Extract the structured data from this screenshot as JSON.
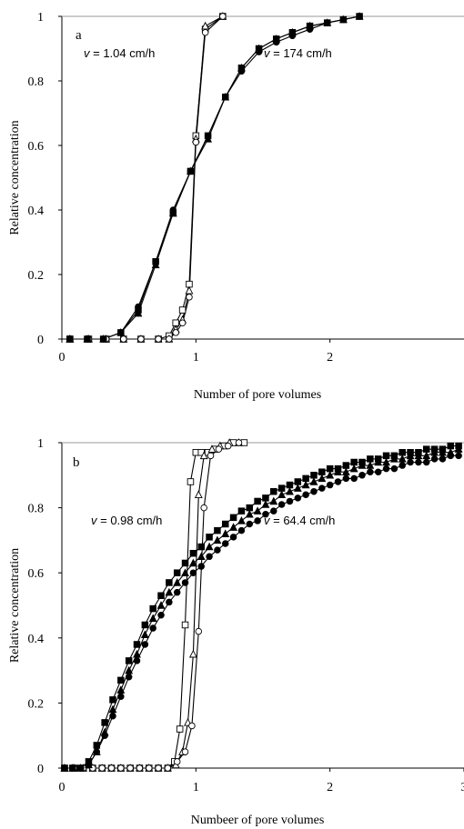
{
  "chart_data": [
    {
      "type": "scatter",
      "panel_label": "a",
      "xlabel": "Number of pore volumes",
      "ylabel": "Relative concentration",
      "xlim": [
        0,
        3
      ],
      "ylim": [
        0,
        1
      ],
      "xticks": [
        "0",
        "1",
        "2"
      ],
      "yticks": [
        "0",
        "0.2",
        "0.4",
        "0.6",
        "0.8",
        "1"
      ],
      "grid": false,
      "annotations": [
        {
          "v_label": "v",
          "rest": " = 1.04 cm/h"
        },
        {
          "v_label": "v",
          "rest": " = 174 cm/h"
        }
      ],
      "series": [
        {
          "group": "v = 1.04 cm/h",
          "marker": "open-square",
          "x": [
            0.06,
            0.2,
            0.33,
            0.46,
            0.59,
            0.72,
            0.8,
            0.85,
            0.9,
            0.95,
            1.0,
            1.07,
            1.2
          ],
          "y": [
            0,
            0,
            0,
            0,
            0,
            0,
            0.01,
            0.05,
            0.09,
            0.17,
            0.63,
            0.96,
            1.0
          ]
        },
        {
          "group": "v = 1.04 cm/h",
          "marker": "open-triangle",
          "x": [
            0.06,
            0.2,
            0.33,
            0.46,
            0.59,
            0.72,
            0.8,
            0.85,
            0.9,
            0.95,
            1.0,
            1.07,
            1.2
          ],
          "y": [
            0,
            0,
            0,
            0,
            0,
            0,
            0,
            0.03,
            0.06,
            0.15,
            0.62,
            0.97,
            1.0
          ]
        },
        {
          "group": "v = 1.04 cm/h",
          "marker": "open-circle",
          "x": [
            0.06,
            0.2,
            0.33,
            0.46,
            0.59,
            0.72,
            0.8,
            0.85,
            0.9,
            0.95,
            1.0,
            1.07,
            1.2
          ],
          "y": [
            0,
            0,
            0,
            0,
            0,
            0,
            0,
            0.02,
            0.05,
            0.13,
            0.61,
            0.95,
            1.0
          ]
        },
        {
          "group": "v = 174 cm/h",
          "marker": "filled-square",
          "x": [
            0.06,
            0.19,
            0.31,
            0.44,
            0.57,
            0.7,
            0.83,
            0.96,
            1.09,
            1.22,
            1.34,
            1.47,
            1.6,
            1.72,
            1.85,
            1.98,
            2.1,
            2.22
          ],
          "y": [
            0,
            0,
            0,
            0.02,
            0.09,
            0.24,
            0.39,
            0.52,
            0.63,
            0.75,
            0.84,
            0.9,
            0.93,
            0.95,
            0.97,
            0.98,
            0.99,
            1.0
          ]
        },
        {
          "group": "v = 174 cm/h",
          "marker": "filled-triangle",
          "x": [
            0.06,
            0.19,
            0.31,
            0.44,
            0.57,
            0.7,
            0.83,
            0.96,
            1.09,
            1.22,
            1.34,
            1.47,
            1.6,
            1.72,
            1.85,
            1.98,
            2.1,
            2.22
          ],
          "y": [
            0,
            0,
            0,
            0.02,
            0.08,
            0.23,
            0.39,
            0.52,
            0.62,
            0.75,
            0.84,
            0.9,
            0.93,
            0.95,
            0.97,
            0.98,
            0.99,
            1.0
          ]
        },
        {
          "group": "v = 174 cm/h",
          "marker": "filled-circle",
          "x": [
            0.06,
            0.19,
            0.31,
            0.44,
            0.57,
            0.7,
            0.83,
            0.96,
            1.09,
            1.22,
            1.34,
            1.47,
            1.6,
            1.72,
            1.85,
            1.98,
            2.1,
            2.22
          ],
          "y": [
            0,
            0,
            0,
            0.02,
            0.1,
            0.24,
            0.4,
            0.52,
            0.63,
            0.75,
            0.83,
            0.89,
            0.92,
            0.94,
            0.96,
            0.98,
            0.99,
            1.0
          ]
        }
      ]
    },
    {
      "type": "scatter",
      "panel_label": "b",
      "xlabel": "Numbeer of pore volumes",
      "ylabel": "Relative concentration",
      "xlim": [
        0,
        3
      ],
      "ylim": [
        0,
        1
      ],
      "xticks": [
        "0",
        "1",
        "2",
        "3"
      ],
      "yticks": [
        "0",
        "0.2",
        "0.4",
        "0.6",
        "0.8",
        "1"
      ],
      "grid": false,
      "annotations": [
        {
          "v_label": "v",
          "rest": " = 0.98 cm/h"
        },
        {
          "v_label": "v",
          "rest": " = 64.4 cm/h"
        }
      ],
      "series": [
        {
          "group": "v = 0.98 cm/h",
          "marker": "open-square",
          "x": [
            0.02,
            0.09,
            0.16,
            0.23,
            0.3,
            0.37,
            0.44,
            0.51,
            0.58,
            0.65,
            0.72,
            0.79,
            0.84,
            0.88,
            0.92,
            0.96,
            1.0,
            1.04,
            1.09,
            1.14,
            1.21,
            1.28,
            1.36
          ],
          "y": [
            0,
            0,
            0,
            0,
            0,
            0,
            0,
            0,
            0,
            0,
            0,
            0,
            0.02,
            0.12,
            0.44,
            0.88,
            0.97,
            0.97,
            0.97,
            0.98,
            0.99,
            1.0,
            1.0
          ]
        },
        {
          "group": "v = 0.98 cm/h",
          "marker": "open-triangle",
          "x": [
            0.02,
            0.09,
            0.16,
            0.23,
            0.3,
            0.37,
            0.44,
            0.51,
            0.58,
            0.65,
            0.72,
            0.79,
            0.85,
            0.9,
            0.94,
            0.98,
            1.02,
            1.06,
            1.12,
            1.18,
            1.25,
            1.32
          ],
          "y": [
            0,
            0,
            0,
            0,
            0,
            0,
            0,
            0,
            0,
            0,
            0,
            0,
            0.01,
            0.05,
            0.14,
            0.35,
            0.84,
            0.96,
            0.98,
            0.99,
            1.0,
            1.0
          ]
        },
        {
          "group": "v = 0.98 cm/h",
          "marker": "open-circle",
          "x": [
            0.02,
            0.09,
            0.16,
            0.23,
            0.3,
            0.37,
            0.44,
            0.51,
            0.58,
            0.65,
            0.72,
            0.79,
            0.86,
            0.92,
            0.97,
            1.02,
            1.06,
            1.11,
            1.17,
            1.24,
            1.32
          ],
          "y": [
            0,
            0,
            0,
            0,
            0,
            0,
            0,
            0,
            0,
            0,
            0,
            0,
            0.02,
            0.05,
            0.13,
            0.42,
            0.8,
            0.96,
            0.98,
            0.99,
            1.0
          ]
        },
        {
          "group": "v = 64.4 cm/h",
          "marker": "filled-square",
          "x": [
            0.02,
            0.08,
            0.14,
            0.2,
            0.26,
            0.32,
            0.38,
            0.44,
            0.5,
            0.56,
            0.62,
            0.68,
            0.74,
            0.8,
            0.86,
            0.92,
            0.98,
            1.04,
            1.1,
            1.16,
            1.22,
            1.28,
            1.34,
            1.4,
            1.46,
            1.52,
            1.58,
            1.64,
            1.7,
            1.76,
            1.82,
            1.88,
            1.94,
            2.0,
            2.06,
            2.12,
            2.18,
            2.24,
            2.3,
            2.36,
            2.42,
            2.48,
            2.54,
            2.6,
            2.66,
            2.72,
            2.78,
            2.84,
            2.9,
            2.96
          ],
          "y": [
            0,
            0,
            0,
            0.02,
            0.07,
            0.14,
            0.21,
            0.27,
            0.33,
            0.38,
            0.44,
            0.49,
            0.53,
            0.57,
            0.6,
            0.63,
            0.66,
            0.68,
            0.71,
            0.73,
            0.75,
            0.77,
            0.79,
            0.8,
            0.82,
            0.83,
            0.85,
            0.86,
            0.87,
            0.88,
            0.89,
            0.9,
            0.91,
            0.92,
            0.92,
            0.93,
            0.94,
            0.94,
            0.95,
            0.95,
            0.96,
            0.96,
            0.97,
            0.97,
            0.97,
            0.98,
            0.98,
            0.98,
            0.99,
            0.99
          ]
        },
        {
          "group": "v = 64.4 cm/h",
          "marker": "filled-triangle",
          "x": [
            0.02,
            0.08,
            0.14,
            0.2,
            0.26,
            0.32,
            0.38,
            0.44,
            0.5,
            0.56,
            0.62,
            0.68,
            0.74,
            0.8,
            0.86,
            0.92,
            0.98,
            1.04,
            1.1,
            1.16,
            1.22,
            1.28,
            1.34,
            1.4,
            1.46,
            1.52,
            1.58,
            1.64,
            1.7,
            1.76,
            1.82,
            1.88,
            1.94,
            2.0,
            2.06,
            2.12,
            2.18,
            2.24,
            2.3,
            2.36,
            2.42,
            2.48,
            2.54,
            2.6,
            2.66,
            2.72,
            2.78,
            2.84,
            2.9,
            2.96
          ],
          "y": [
            0,
            0,
            0,
            0.01,
            0.05,
            0.11,
            0.18,
            0.24,
            0.3,
            0.35,
            0.41,
            0.46,
            0.5,
            0.54,
            0.57,
            0.6,
            0.63,
            0.65,
            0.68,
            0.7,
            0.72,
            0.74,
            0.76,
            0.78,
            0.79,
            0.81,
            0.82,
            0.84,
            0.85,
            0.86,
            0.87,
            0.88,
            0.89,
            0.9,
            0.91,
            0.91,
            0.92,
            0.93,
            0.93,
            0.94,
            0.94,
            0.95,
            0.95,
            0.96,
            0.96,
            0.96,
            0.97,
            0.97,
            0.97,
            0.98
          ]
        },
        {
          "group": "v = 64.4 cm/h",
          "marker": "filled-circle",
          "x": [
            0.02,
            0.08,
            0.14,
            0.2,
            0.26,
            0.32,
            0.38,
            0.44,
            0.5,
            0.56,
            0.62,
            0.68,
            0.74,
            0.8,
            0.86,
            0.92,
            0.98,
            1.04,
            1.1,
            1.16,
            1.22,
            1.28,
            1.34,
            1.4,
            1.46,
            1.52,
            1.58,
            1.64,
            1.7,
            1.76,
            1.82,
            1.88,
            1.94,
            2.0,
            2.06,
            2.12,
            2.18,
            2.24,
            2.3,
            2.36,
            2.42,
            2.48,
            2.54,
            2.6,
            2.66,
            2.72,
            2.78,
            2.84,
            2.9,
            2.96
          ],
          "y": [
            0,
            0,
            0,
            0.01,
            0.05,
            0.1,
            0.16,
            0.22,
            0.28,
            0.33,
            0.38,
            0.43,
            0.47,
            0.51,
            0.54,
            0.57,
            0.6,
            0.62,
            0.65,
            0.67,
            0.69,
            0.71,
            0.73,
            0.75,
            0.76,
            0.78,
            0.79,
            0.81,
            0.82,
            0.83,
            0.84,
            0.85,
            0.86,
            0.87,
            0.88,
            0.89,
            0.89,
            0.9,
            0.91,
            0.91,
            0.92,
            0.92,
            0.93,
            0.94,
            0.94,
            0.94,
            0.95,
            0.95,
            0.96,
            0.96
          ]
        }
      ]
    }
  ]
}
